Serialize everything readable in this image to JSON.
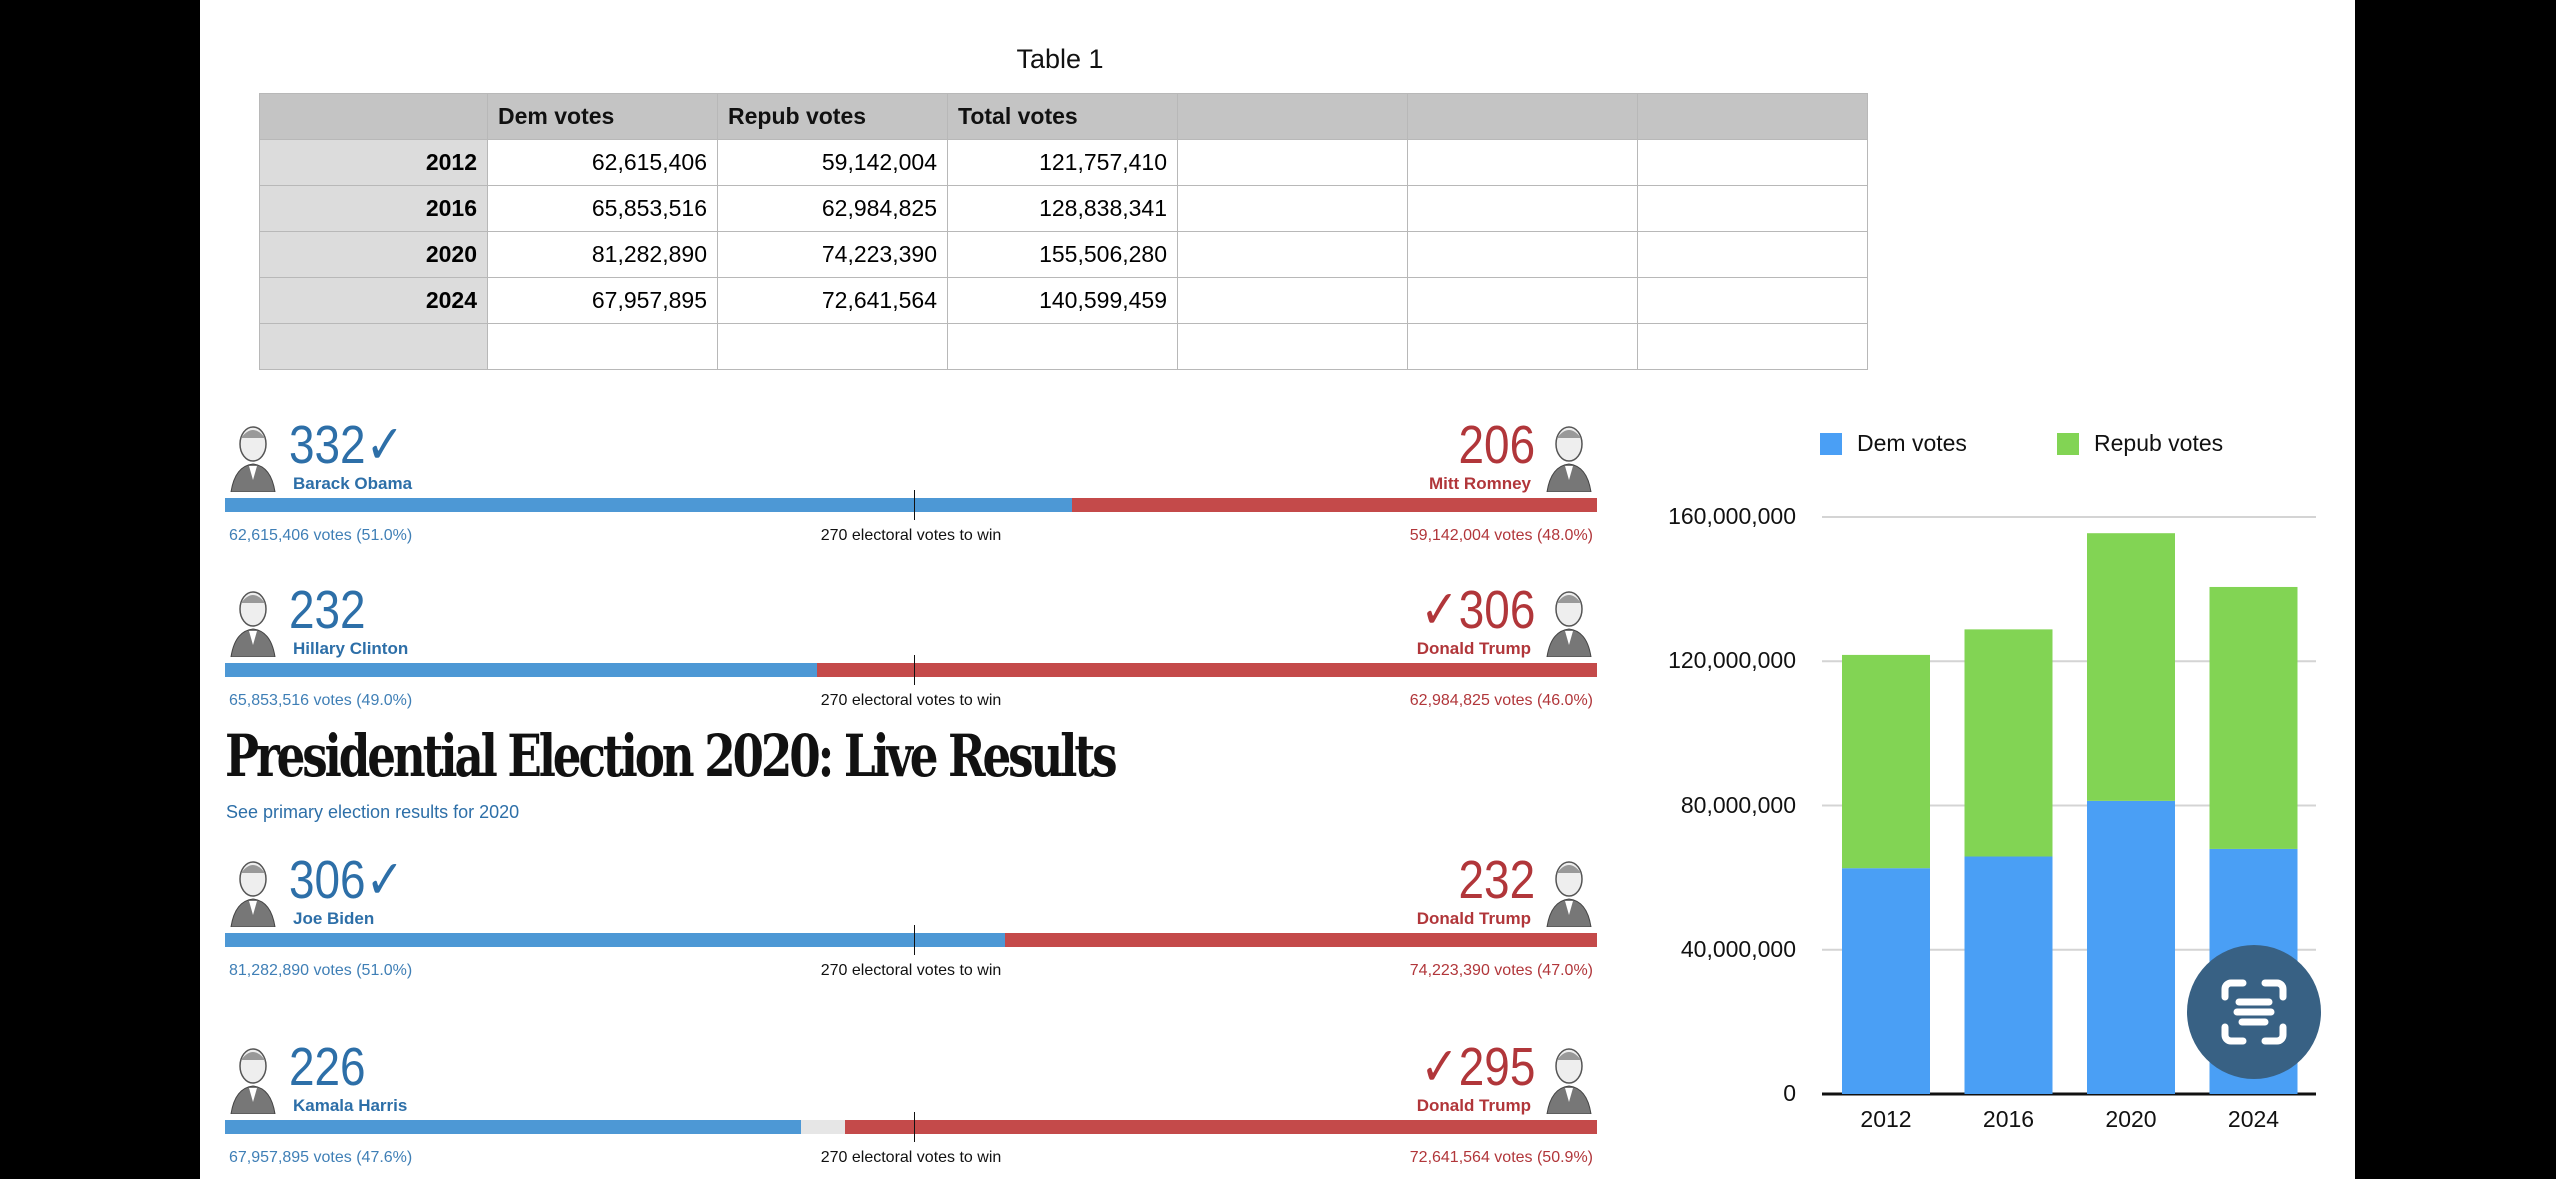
{
  "table": {
    "title": "Table 1",
    "headers": [
      "",
      "Dem votes",
      "Repub votes",
      "Total votes",
      "",
      "",
      ""
    ],
    "rows": [
      [
        "2012",
        "62,615,406",
        "59,142,004",
        "121,757,410"
      ],
      [
        "2016",
        "65,853,516",
        "62,984,825",
        "128,838,341"
      ],
      [
        "2020",
        "81,282,890",
        "74,223,390",
        "155,506,280"
      ],
      [
        "2024",
        "67,957,895",
        "72,641,564",
        "140,599,459"
      ],
      [
        "",
        "",
        "",
        ""
      ]
    ]
  },
  "headline": "Presidential Election 2020: Live Results",
  "primary_link": "See primary election results for 2020",
  "races": [
    {
      "dem": {
        "name": "Barack Obama",
        "ev": 332,
        "ev_label": "332✓",
        "votes": "62,615,406 votes (51.0%)"
      },
      "rep": {
        "name": "Mitt Romney",
        "ev": 206,
        "ev_label": "206",
        "votes": "59,142,004 votes (48.0%)"
      },
      "center": "270 electoral votes to win"
    },
    {
      "dem": {
        "name": "Hillary Clinton",
        "ev": 232,
        "ev_label": "232",
        "votes": "65,853,516 votes (49.0%)"
      },
      "rep": {
        "name": "Donald Trump",
        "ev": 306,
        "ev_label": "✓306",
        "votes": "62,984,825 votes (46.0%)"
      },
      "center": "270 electoral votes to win"
    },
    {
      "dem": {
        "name": "Joe Biden",
        "ev": 306,
        "ev_label": "306✓",
        "votes": "81,282,890 votes (51.0%)"
      },
      "rep": {
        "name": "Donald Trump",
        "ev": 232,
        "ev_label": "232",
        "votes": "74,223,390 votes (47.0%)"
      },
      "center": "270 electoral votes to win"
    },
    {
      "dem": {
        "name": "Kamala Harris",
        "ev": 226,
        "ev_label": "226",
        "votes": "67,957,895 votes (47.6%)"
      },
      "rep": {
        "name": "Donald Trump",
        "ev": 295,
        "ev_label": "✓295",
        "votes": "72,641,564 votes (50.9%)"
      },
      "center": "270 electoral votes to win"
    }
  ],
  "colors": {
    "dem": "#4a9ff5",
    "rep": "#82d454",
    "bar_dem": "#4d98d5",
    "bar_rep": "#c44a4a"
  },
  "chart_data": {
    "type": "bar",
    "stacked": true,
    "categories": [
      "2012",
      "2016",
      "2020",
      "2024"
    ],
    "series": [
      {
        "name": "Dem votes",
        "values": [
          62615406,
          65853516,
          81282890,
          67957895
        ]
      },
      {
        "name": "Repub votes",
        "values": [
          59142004,
          62984825,
          74223390,
          72641564
        ]
      }
    ],
    "yticks": [
      "0",
      "40,000,000",
      "80,000,000",
      "120,000,000",
      "160,000,000"
    ],
    "ylim": [
      0,
      160000000
    ],
    "legend": "top",
    "grid": true
  },
  "scan_button_icon": "live-text-scan-icon"
}
